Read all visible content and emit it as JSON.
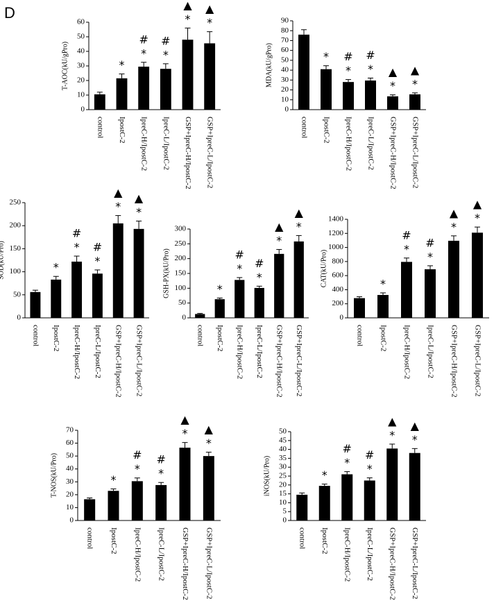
{
  "panel_label": "D",
  "chart_data": [
    {
      "type": "bar",
      "ylabel": "T-AOC(kU/gPro)",
      "categories": [
        "control",
        "IpostC-2",
        "IpreC-H/IpostC-2",
        "IpreC-L/IpostC-2",
        "GSP+IpreC-H/IpostC-2",
        "GSP+IpreC-L/IpostC-2"
      ],
      "values": [
        10.5,
        21.5,
        29.5,
        28,
        48,
        45.5
      ],
      "errors": [
        1.5,
        3,
        3,
        3.5,
        8,
        8
      ],
      "annotations": [
        [],
        [
          "*"
        ],
        [
          "*",
          "#"
        ],
        [
          "*",
          "#"
        ],
        [
          "*",
          "▲"
        ],
        [
          "*",
          "▲"
        ]
      ],
      "color": "#000000",
      "ylim": [
        0,
        60
      ],
      "yticks": [
        0,
        10,
        20,
        30,
        40,
        50,
        60
      ]
    },
    {
      "type": "bar",
      "ylabel": "MDA(kU/gPro)",
      "categories": [
        "control",
        "IpostC-2",
        "IpreC-H/IpostC-2",
        "IpreC-L/IpostC-2",
        "GSP+IpreC-H/IpostC-2",
        "GSP+IpreC-L/IpostC-2"
      ],
      "values": [
        76,
        41,
        28,
        29.5,
        13.5,
        15.5
      ],
      "errors": [
        5,
        3.5,
        2.5,
        2.5,
        1.5,
        1.5
      ],
      "annotations": [
        [],
        [
          "*"
        ],
        [
          "*",
          "#"
        ],
        [
          "*",
          "#"
        ],
        [
          "*",
          "▲"
        ],
        [
          "*",
          "▲"
        ]
      ],
      "color": "#000000",
      "ylim": [
        0,
        90
      ],
      "yticks": [
        0,
        10,
        20,
        30,
        40,
        50,
        60,
        70,
        80,
        90
      ]
    },
    {
      "type": "bar",
      "ylabel": "SOD(kU/Pro)",
      "categories": [
        "control",
        "IpostC-2",
        "IpreC-H/IpostC-2",
        "IpreC-L/IpostC-2",
        "GSP+IpreC-H/IpostC-2",
        "GSP+IpreC-L/IpostC-2"
      ],
      "values": [
        56,
        83,
        122,
        96,
        205,
        193
      ],
      "errors": [
        4,
        7,
        12,
        8,
        17,
        17
      ],
      "annotations": [
        [],
        [
          "*"
        ],
        [
          "*",
          "#"
        ],
        [
          "*",
          "#"
        ],
        [
          "*",
          "▲"
        ],
        [
          "*",
          "▲"
        ]
      ],
      "color": "#000000",
      "ylim": [
        0,
        250
      ],
      "yticks": [
        0,
        50,
        100,
        150,
        200,
        250
      ]
    },
    {
      "type": "bar",
      "ylabel": "GSH-PX(kU/Pro)",
      "categories": [
        "control",
        "IpostC-2",
        "IpreC-H/IpostC-2",
        "IpreC-L/IpostC-2",
        "GSP+IpreC-H/IpostC-2",
        "GSP+IpreC-L/IpostC-2"
      ],
      "values": [
        13,
        63,
        128,
        101,
        216,
        258
      ],
      "errors": [
        2,
        4,
        8,
        6,
        15,
        20
      ],
      "annotations": [
        [],
        [
          "*"
        ],
        [
          "*",
          "#"
        ],
        [
          "*",
          "#"
        ],
        [
          "*",
          "▲"
        ],
        [
          "*",
          "▲"
        ]
      ],
      "color": "#000000",
      "ylim": [
        0,
        300
      ],
      "yticks": [
        0,
        50,
        100,
        150,
        200,
        250,
        300
      ]
    },
    {
      "type": "bar",
      "ylabel": "CAT(kU/Pro)",
      "categories": [
        "control",
        "IpostC-2",
        "IpreC-H/IpostC-2",
        "IpreC-L/IpostC-2",
        "GSP+IpreC-H/IpostC-2",
        "GSP+IpreC-L/IpostC-2"
      ],
      "values": [
        280,
        325,
        795,
        690,
        1095,
        1210
      ],
      "errors": [
        20,
        30,
        55,
        50,
        70,
        80
      ],
      "annotations": [
        [],
        [
          "*"
        ],
        [
          "*",
          "#"
        ],
        [
          "*",
          "#"
        ],
        [
          "*",
          "▲"
        ],
        [
          "*",
          "▲"
        ]
      ],
      "color": "#000000",
      "ylim": [
        0,
        1400
      ],
      "yticks": [
        0,
        200,
        400,
        600,
        800,
        1000,
        1200,
        1400
      ]
    },
    {
      "type": "bar",
      "ylabel": "T-NOS(kU/Pro)",
      "categories": [
        "control",
        "IpostC-2",
        "IpreC-H/IpostC-2",
        "IpreC-L/IpostC-2",
        "GSP+IpreC-H/IpostC-2",
        "GSP+IpreC-L/IpostC-2"
      ],
      "values": [
        16.5,
        23,
        30.5,
        27.5,
        56.5,
        50
      ],
      "errors": [
        1,
        1.5,
        2.5,
        2,
        4,
        3
      ],
      "annotations": [
        [],
        [
          "*"
        ],
        [
          "*",
          "#"
        ],
        [
          "*",
          "#"
        ],
        [
          "*",
          "▲"
        ],
        [
          "*",
          "▲"
        ]
      ],
      "color": "#000000",
      "ylim": [
        0,
        70
      ],
      "yticks": [
        0,
        10,
        20,
        30,
        40,
        50,
        60,
        70
      ]
    },
    {
      "type": "bar",
      "ylabel": "iNOS(kU/Pro)",
      "categories": [
        "control",
        "IpostC-2",
        "IpreC-H/IpostC-2",
        "IpreC-L/IpostC-2",
        "GSP+IpreC-H/IpostC-2",
        "GSP+IpreC-L/IpostC-2"
      ],
      "values": [
        14.5,
        19.5,
        26,
        22.5,
        40.5,
        38
      ],
      "errors": [
        1,
        1,
        1.5,
        1.5,
        2.5,
        2.5
      ],
      "annotations": [
        [],
        [
          "*"
        ],
        [
          "*",
          "#"
        ],
        [
          "*",
          "#"
        ],
        [
          "*",
          "▲"
        ],
        [
          "*",
          "▲"
        ]
      ],
      "color": "#000000",
      "ylim": [
        0,
        50
      ],
      "yticks": [
        0,
        5,
        10,
        15,
        20,
        25,
        30,
        35,
        40,
        45,
        50
      ]
    }
  ]
}
